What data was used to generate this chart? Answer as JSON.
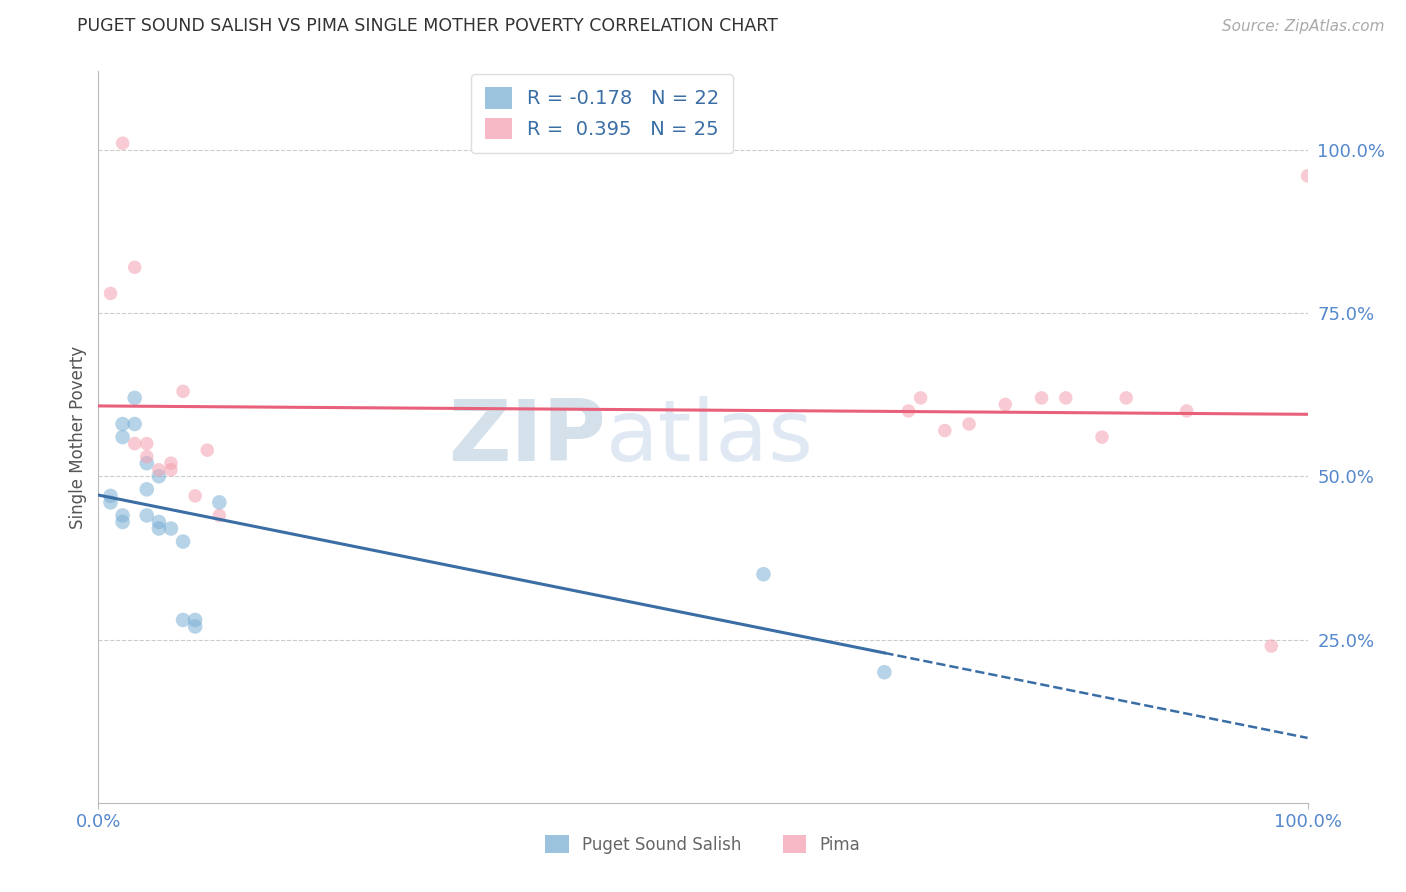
{
  "title": "PUGET SOUND SALISH VS PIMA SINGLE MOTHER POVERTY CORRELATION CHART",
  "source": "Source: ZipAtlas.com",
  "ylabel": "Single Mother Poverty",
  "legend_label1": "Puget Sound Salish",
  "legend_label2": "Pima",
  "R1": -0.178,
  "N1": 22,
  "R2": 0.395,
  "N2": 25,
  "xlim": [
    0.0,
    1.0
  ],
  "ylim": [
    0.0,
    1.12
  ],
  "blue_color": "#7BAFD4",
  "pink_color": "#F4A0B0",
  "blue_line_color": "#3A6EA5",
  "pink_line_color": "#E8607A",
  "watermark_text": "ZIPatlas",
  "watermark_color": "#D0DFF0",
  "grid_color": "#CCCCCC",
  "title_color": "#333333",
  "axis_label_color": "#555555",
  "right_tick_color": "#5588CC",
  "bottom_tick_color": "#5588CC",
  "puget_x": [
    0.01,
    0.01,
    0.02,
    0.02,
    0.02,
    0.02,
    0.03,
    0.03,
    0.04,
    0.04,
    0.04,
    0.05,
    0.05,
    0.05,
    0.06,
    0.07,
    0.07,
    0.08,
    0.08,
    0.1,
    0.55,
    0.65
  ],
  "puget_y": [
    0.47,
    0.46,
    0.58,
    0.56,
    0.44,
    0.43,
    0.62,
    0.58,
    0.52,
    0.48,
    0.44,
    0.5,
    0.43,
    0.42,
    0.42,
    0.4,
    0.28,
    0.28,
    0.27,
    0.46,
    0.35,
    0.2
  ],
  "pima_x": [
    0.01,
    0.02,
    0.03,
    0.03,
    0.04,
    0.04,
    0.05,
    0.06,
    0.06,
    0.07,
    0.08,
    0.09,
    0.1,
    0.67,
    0.68,
    0.7,
    0.72,
    0.75,
    0.78,
    0.8,
    0.83,
    0.85,
    0.9,
    0.97,
    1.0
  ],
  "pima_y": [
    0.78,
    1.01,
    0.82,
    0.55,
    0.55,
    0.53,
    0.51,
    0.52,
    0.51,
    0.63,
    0.47,
    0.54,
    0.44,
    0.6,
    0.62,
    0.57,
    0.58,
    0.61,
    0.62,
    0.62,
    0.56,
    0.62,
    0.6,
    0.24,
    0.96
  ],
  "blue_marker_size": 110,
  "pink_marker_size": 95,
  "marker_alpha": 0.55,
  "blue_line_solid_end": 0.65,
  "blue_line_x_end": 1.0,
  "pink_line_x_end": 1.0
}
